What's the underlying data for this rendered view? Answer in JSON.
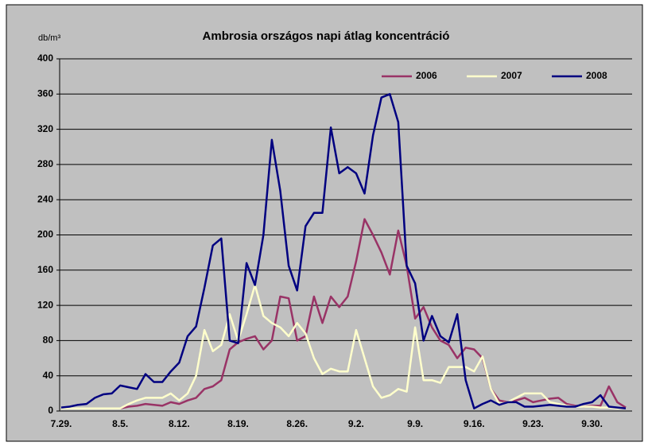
{
  "chart_data": {
    "type": "line",
    "title": "Ambrosia országos napi átlag koncentráció",
    "y_label": "db/m³",
    "categories": [
      "7.29.",
      null,
      null,
      null,
      null,
      null,
      null,
      "8.5.",
      null,
      null,
      null,
      null,
      null,
      null,
      "8.12.",
      null,
      null,
      null,
      null,
      null,
      null,
      "8.19.",
      null,
      null,
      null,
      null,
      null,
      null,
      "8.26.",
      null,
      null,
      null,
      null,
      null,
      null,
      "9.2.",
      null,
      null,
      null,
      null,
      null,
      null,
      "9.9.",
      null,
      null,
      null,
      null,
      null,
      null,
      "9.16.",
      null,
      null,
      null,
      null,
      null,
      null,
      "9.23.",
      null,
      null,
      null,
      null,
      null,
      null,
      "9.30.",
      null,
      null,
      null,
      null
    ],
    "series": [
      {
        "name": "2006",
        "color": "#993366",
        "values": [
          3,
          3,
          3,
          3,
          3,
          3,
          3,
          3,
          5,
          6,
          8,
          7,
          6,
          10,
          8,
          12,
          15,
          25,
          28,
          35,
          70,
          78,
          82,
          85,
          70,
          80,
          130,
          128,
          80,
          85,
          130,
          100,
          130,
          118,
          130,
          170,
          218,
          200,
          180,
          155,
          205,
          165,
          105,
          118,
          95,
          80,
          75,
          60,
          72,
          70,
          60,
          25,
          12,
          10,
          12,
          15,
          10,
          12,
          14,
          15,
          8,
          6,
          5,
          6,
          6,
          28,
          10,
          4
        ]
      },
      {
        "name": "2007",
        "color": "#ffffcc",
        "values": [
          3,
          3,
          3,
          3,
          3,
          3,
          3,
          3,
          8,
          12,
          15,
          15,
          15,
          20,
          12,
          20,
          40,
          92,
          68,
          75,
          110,
          80,
          110,
          143,
          108,
          100,
          95,
          85,
          100,
          88,
          60,
          42,
          48,
          45,
          45,
          92,
          60,
          28,
          15,
          18,
          25,
          22,
          95,
          35,
          35,
          32,
          50,
          50,
          50,
          45,
          62,
          25,
          8,
          10,
          15,
          20,
          20,
          20,
          10,
          8,
          6,
          5,
          5,
          5,
          4,
          4,
          3,
          3
        ]
      },
      {
        "name": "2008",
        "color": "#000080",
        "values": [
          4,
          5,
          7,
          8,
          15,
          19,
          20,
          29,
          27,
          25,
          42,
          33,
          33,
          45,
          55,
          85,
          96,
          140,
          188,
          196,
          80,
          77,
          168,
          143,
          200,
          308,
          250,
          165,
          137,
          210,
          225,
          225,
          322,
          270,
          277,
          270,
          247,
          313,
          356,
          360,
          328,
          165,
          145,
          80,
          108,
          85,
          78,
          110,
          35,
          3,
          8,
          12,
          7,
          10,
          10,
          5,
          5,
          6,
          7,
          6,
          5,
          5,
          8,
          10,
          18,
          5,
          4,
          3
        ]
      }
    ],
    "ylim": [
      0,
      400
    ],
    "yticks": [
      0,
      40,
      80,
      120,
      160,
      200,
      240,
      280,
      320,
      360,
      400
    ],
    "grid": true,
    "legend": "top-right"
  }
}
